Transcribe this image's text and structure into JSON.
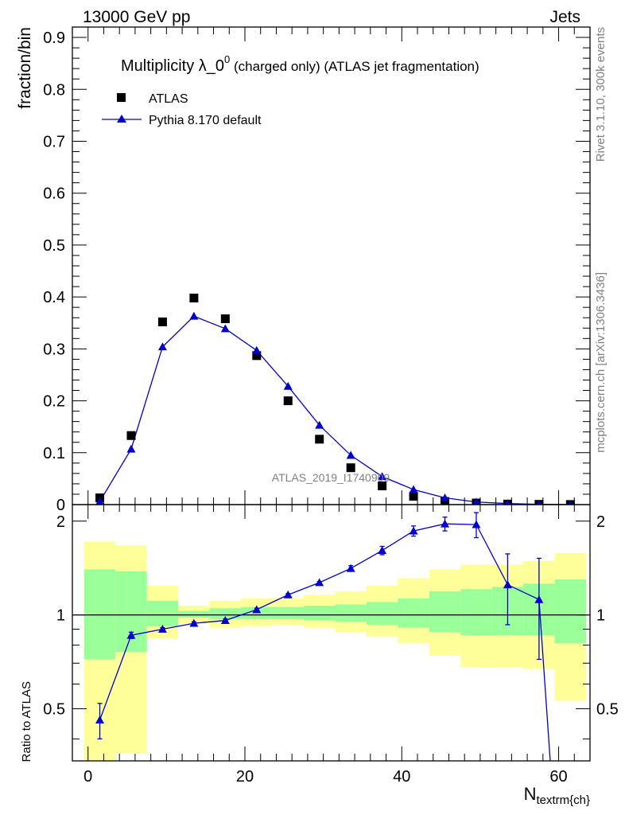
{
  "header": {
    "left": "13000 GeV pp",
    "right": "Jets"
  },
  "side_labels": {
    "rivet": "Rivet 3.1.10,  300k events",
    "mcplots": "mcplots.cern.ch [arXiv:1306.3436]"
  },
  "title": {
    "main": "Multiplicity λ_0",
    "sup": "0",
    "detail": " (charged only) (ATLAS jet fragmentation)"
  },
  "watermark": "ATLAS_2019_I1740909",
  "colors": {
    "atlas": "#000000",
    "pythia": "#0000cc",
    "band_inner": "#99ff99",
    "band_outer": "#ffff99"
  },
  "chart_data": [
    {
      "type": "scatter",
      "ylabel": "fraction/bin",
      "ylim": [
        0,
        0.92
      ],
      "xlim": [
        -2,
        64
      ],
      "yticks": [
        0,
        0.1,
        0.2,
        0.3,
        0.4,
        0.5,
        0.6,
        0.7,
        0.8,
        0.9
      ],
      "legend": {
        "placement": "top-left",
        "entries": [
          "ATLAS",
          "Pythia 8.170 default"
        ]
      },
      "series": [
        {
          "name": "ATLAS",
          "marker": "square",
          "x": [
            1.5,
            5.5,
            9.5,
            13.5,
            17.5,
            21.5,
            25.5,
            29.5,
            33.5,
            37.5,
            41.5,
            45.5,
            49.5,
            53.5,
            57.5,
            61.5
          ],
          "y": [
            0.013,
            0.133,
            0.352,
            0.398,
            0.358,
            0.287,
            0.2,
            0.126,
            0.071,
            0.036,
            0.016,
            0.006,
            0.003,
            0.001,
            0.0005,
            0.0002
          ]
        },
        {
          "name": "Pythia 8.170 default",
          "marker": "triangle",
          "x": [
            1.5,
            5.5,
            9.5,
            13.5,
            17.5,
            21.5,
            25.5,
            29.5,
            33.5,
            37.5,
            41.5,
            45.5,
            49.5,
            53.5,
            57.5,
            61.5
          ],
          "y": [
            0.006,
            0.107,
            0.304,
            0.363,
            0.339,
            0.297,
            0.228,
            0.153,
            0.095,
            0.054,
            0.029,
            0.013,
            0.005,
            0.002,
            0.0005,
            0.0001
          ]
        }
      ]
    },
    {
      "type": "line",
      "ylabel": "Ratio to ATLAS",
      "xlabel_main": "N",
      "xlabel_sub": "textrm{ch}",
      "xlim": [
        -2,
        64
      ],
      "ylim": [
        0.34,
        2.26
      ],
      "yticks": [
        0.5,
        1,
        2
      ],
      "xticks": [
        0,
        20,
        40,
        60
      ],
      "reference_line": 1,
      "bins": [
        -0.5,
        3.5,
        7.5,
        11.5,
        15.5,
        19.5,
        23.5,
        27.5,
        31.5,
        35.5,
        39.5,
        43.5,
        47.5,
        51.5,
        55.5,
        59.5,
        63.5
      ],
      "band_inner": {
        "lower": [
          0.72,
          0.76,
          0.92,
          0.98,
          0.97,
          0.97,
          0.97,
          0.96,
          0.95,
          0.93,
          0.91,
          0.88,
          0.86,
          0.86,
          0.86,
          0.81
        ],
        "upper": [
          1.4,
          1.38,
          1.11,
          1.03,
          1.05,
          1.06,
          1.06,
          1.07,
          1.08,
          1.1,
          1.13,
          1.19,
          1.21,
          1.23,
          1.26,
          1.3
        ]
      },
      "band_outer": {
        "lower": [
          0.34,
          0.36,
          0.84,
          0.94,
          0.91,
          0.92,
          0.93,
          0.91,
          0.88,
          0.85,
          0.81,
          0.74,
          0.68,
          0.68,
          0.67,
          0.53
        ],
        "upper": [
          1.72,
          1.67,
          1.24,
          1.07,
          1.11,
          1.13,
          1.13,
          1.16,
          1.19,
          1.24,
          1.31,
          1.4,
          1.45,
          1.45,
          1.49,
          1.58
        ]
      },
      "series": [
        {
          "name": "Pythia 8.170 default",
          "marker": "triangle",
          "x": [
            1.5,
            5.5,
            9.5,
            13.5,
            17.5,
            21.5,
            25.5,
            29.5,
            33.5,
            37.5,
            41.5,
            45.5,
            49.5,
            53.5,
            57.5
          ],
          "y": [
            0.46,
            0.86,
            0.9,
            0.94,
            0.96,
            1.04,
            1.16,
            1.27,
            1.41,
            1.61,
            1.86,
            1.96,
            1.95,
            1.25,
            1.12
          ],
          "err": [
            0.06,
            0.02,
            0.01,
            0.01,
            0.01,
            0.01,
            0.01,
            0.01,
            0.03,
            0.05,
            0.07,
            0.1,
            0.18,
            0.32,
            0.4
          ],
          "continues_below_to_x": 59.0
        }
      ]
    }
  ]
}
